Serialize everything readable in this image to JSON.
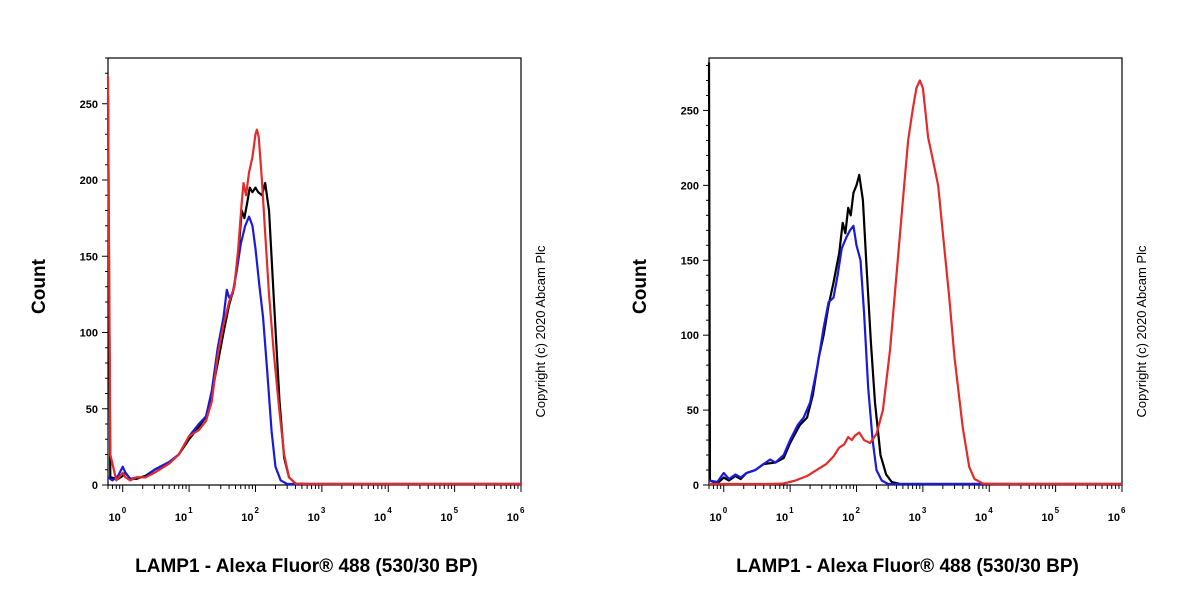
{
  "chart_data": [
    {
      "type": "line",
      "xlabel": "LAMP1 - Alexa Fluor® 488 (530/30 BP)",
      "ylabel": "Count",
      "xscale": "log",
      "xlim": [
        0.6,
        1000000
      ],
      "ylim": [
        0,
        280
      ],
      "x_ticks": [
        {
          "value": 1,
          "base": "10",
          "exp": "0"
        },
        {
          "value": 10,
          "base": "10",
          "exp": "1"
        },
        {
          "value": 100,
          "base": "10",
          "exp": "2"
        },
        {
          "value": 1000,
          "base": "10",
          "exp": "3"
        },
        {
          "value": 10000,
          "base": "10",
          "exp": "4"
        },
        {
          "value": 100000,
          "base": "10",
          "exp": "5"
        },
        {
          "value": 1000000,
          "base": "10",
          "exp": "6"
        }
      ],
      "y_ticks": [
        0,
        50,
        100,
        150,
        200,
        250
      ],
      "grid": false,
      "copyright": "Copyright (c) 2020 Abcam Plc",
      "series": [
        {
          "color": "#000000",
          "points": [
            [
              0.6,
              255
            ],
            [
              0.65,
              5
            ],
            [
              0.85,
              4
            ],
            [
              1.0,
              6
            ],
            [
              1.1,
              8
            ],
            [
              1.3,
              4
            ],
            [
              1.6,
              4
            ],
            [
              2.2,
              6
            ],
            [
              3,
              10
            ],
            [
              5,
              15
            ],
            [
              7,
              20
            ],
            [
              10,
              30
            ],
            [
              14,
              38
            ],
            [
              18,
              45
            ],
            [
              22,
              60
            ],
            [
              27,
              80
            ],
            [
              33,
              100
            ],
            [
              40,
              118
            ],
            [
              48,
              130
            ],
            [
              56,
              155
            ],
            [
              62,
              180
            ],
            [
              68,
              175
            ],
            [
              75,
              185
            ],
            [
              82,
              195
            ],
            [
              90,
              192
            ],
            [
              100,
              195
            ],
            [
              110,
              192
            ],
            [
              125,
              190
            ],
            [
              140,
              198
            ],
            [
              160,
              180
            ],
            [
              190,
              120
            ],
            [
              230,
              55
            ],
            [
              270,
              18
            ],
            [
              320,
              5
            ],
            [
              400,
              1
            ],
            [
              600,
              0
            ],
            [
              1000000,
              0
            ]
          ]
        },
        {
          "color": "#1a1adc",
          "points": [
            [
              0.6,
              5
            ],
            [
              0.7,
              3
            ],
            [
              0.85,
              6
            ],
            [
              1.0,
              12
            ],
            [
              1.1,
              8
            ],
            [
              1.3,
              4
            ],
            [
              1.6,
              5
            ],
            [
              2.2,
              5
            ],
            [
              3,
              10
            ],
            [
              5,
              15
            ],
            [
              7,
              20
            ],
            [
              10,
              32
            ],
            [
              14,
              40
            ],
            [
              18,
              45
            ],
            [
              22,
              62
            ],
            [
              27,
              90
            ],
            [
              33,
              110
            ],
            [
              37,
              128
            ],
            [
              40,
              123
            ],
            [
              45,
              125
            ],
            [
              52,
              140
            ],
            [
              60,
              158
            ],
            [
              70,
              170
            ],
            [
              80,
              176
            ],
            [
              90,
              170
            ],
            [
              100,
              155
            ],
            [
              115,
              130
            ],
            [
              130,
              110
            ],
            [
              150,
              75
            ],
            [
              175,
              35
            ],
            [
              200,
              12
            ],
            [
              240,
              3
            ],
            [
              300,
              0
            ],
            [
              1000000,
              0
            ]
          ]
        },
        {
          "color": "#e32b2b",
          "points": [
            [
              0.6,
              268
            ],
            [
              0.65,
              20
            ],
            [
              0.8,
              3
            ],
            [
              1.0,
              8
            ],
            [
              1.1,
              5
            ],
            [
              1.3,
              3
            ],
            [
              1.6,
              5
            ],
            [
              2.2,
              5
            ],
            [
              3,
              8
            ],
            [
              5,
              14
            ],
            [
              7,
              20
            ],
            [
              10,
              32
            ],
            [
              14,
              36
            ],
            [
              18,
              42
            ],
            [
              22,
              55
            ],
            [
              27,
              85
            ],
            [
              33,
              105
            ],
            [
              40,
              120
            ],
            [
              48,
              130
            ],
            [
              55,
              155
            ],
            [
              62,
              185
            ],
            [
              66,
              198
            ],
            [
              72,
              190
            ],
            [
              80,
              205
            ],
            [
              90,
              215
            ],
            [
              100,
              230
            ],
            [
              105,
              233
            ],
            [
              112,
              228
            ],
            [
              125,
              200
            ],
            [
              140,
              165
            ],
            [
              160,
              125
            ],
            [
              190,
              85
            ],
            [
              230,
              48
            ],
            [
              270,
              20
            ],
            [
              320,
              5
            ],
            [
              400,
              1
            ],
            [
              600,
              0
            ],
            [
              1000000,
              0
            ]
          ]
        }
      ]
    },
    {
      "type": "line",
      "xlabel": "LAMP1 - Alexa Fluor® 488 (530/30 BP)",
      "ylabel": "Count",
      "xscale": "log",
      "xlim": [
        0.6,
        1000000
      ],
      "ylim": [
        0,
        285
      ],
      "x_ticks": [
        {
          "value": 1,
          "base": "10",
          "exp": "0"
        },
        {
          "value": 10,
          "base": "10",
          "exp": "1"
        },
        {
          "value": 100,
          "base": "10",
          "exp": "2"
        },
        {
          "value": 1000,
          "base": "10",
          "exp": "3"
        },
        {
          "value": 10000,
          "base": "10",
          "exp": "4"
        },
        {
          "value": 100000,
          "base": "10",
          "exp": "5"
        },
        {
          "value": 1000000,
          "base": "10",
          "exp": "6"
        }
      ],
      "y_ticks": [
        0,
        50,
        100,
        150,
        200,
        250
      ],
      "grid": false,
      "copyright": "Copyright (c) 2020 Abcam Plc",
      "series": [
        {
          "color": "#000000",
          "points": [
            [
              0.6,
              282
            ],
            [
              0.62,
              3
            ],
            [
              0.8,
              1
            ],
            [
              1.0,
              5
            ],
            [
              1.2,
              3
            ],
            [
              1.5,
              6
            ],
            [
              1.8,
              4
            ],
            [
              2.2,
              8
            ],
            [
              3,
              10
            ],
            [
              4,
              14
            ],
            [
              6,
              15
            ],
            [
              8,
              18
            ],
            [
              10,
              28
            ],
            [
              14,
              40
            ],
            [
              18,
              45
            ],
            [
              22,
              60
            ],
            [
              27,
              85
            ],
            [
              32,
              100
            ],
            [
              38,
              120
            ],
            [
              45,
              135
            ],
            [
              55,
              155
            ],
            [
              62,
              175
            ],
            [
              68,
              168
            ],
            [
              75,
              185
            ],
            [
              82,
              180
            ],
            [
              90,
              195
            ],
            [
              100,
              200
            ],
            [
              110,
              207
            ],
            [
              125,
              190
            ],
            [
              140,
              150
            ],
            [
              165,
              95
            ],
            [
              190,
              55
            ],
            [
              230,
              20
            ],
            [
              280,
              7
            ],
            [
              340,
              2
            ],
            [
              450,
              0
            ],
            [
              1000000,
              0
            ]
          ]
        },
        {
          "color": "#1a1adc",
          "points": [
            [
              0.6,
              3
            ],
            [
              0.8,
              2
            ],
            [
              1.0,
              8
            ],
            [
              1.2,
              4
            ],
            [
              1.5,
              7
            ],
            [
              1.8,
              5
            ],
            [
              2.2,
              8
            ],
            [
              3,
              10
            ],
            [
              4,
              14
            ],
            [
              5,
              17
            ],
            [
              6,
              15
            ],
            [
              8,
              20
            ],
            [
              10,
              30
            ],
            [
              13,
              40
            ],
            [
              16,
              45
            ],
            [
              20,
              55
            ],
            [
              26,
              80
            ],
            [
              32,
              105
            ],
            [
              38,
              122
            ],
            [
              45,
              125
            ],
            [
              52,
              140
            ],
            [
              60,
              158
            ],
            [
              70,
              165
            ],
            [
              80,
              170
            ],
            [
              90,
              173
            ],
            [
              100,
              160
            ],
            [
              115,
              150
            ],
            [
              130,
              115
            ],
            [
              150,
              65
            ],
            [
              175,
              30
            ],
            [
              200,
              10
            ],
            [
              240,
              3
            ],
            [
              300,
              0
            ],
            [
              1000000,
              0
            ]
          ]
        },
        {
          "color": "#e32b2b",
          "points": [
            [
              0.6,
              0
            ],
            [
              5,
              0
            ],
            [
              8,
              1
            ],
            [
              12,
              3
            ],
            [
              18,
              6
            ],
            [
              25,
              10
            ],
            [
              35,
              14
            ],
            [
              45,
              19
            ],
            [
              55,
              25
            ],
            [
              65,
              27
            ],
            [
              75,
              32
            ],
            [
              85,
              30
            ],
            [
              95,
              33
            ],
            [
              110,
              35
            ],
            [
              130,
              30
            ],
            [
              160,
              28
            ],
            [
              200,
              34
            ],
            [
              250,
              50
            ],
            [
              320,
              90
            ],
            [
              400,
              140
            ],
            [
              500,
              190
            ],
            [
              600,
              230
            ],
            [
              700,
              250
            ],
            [
              800,
              265
            ],
            [
              900,
              270
            ],
            [
              1000,
              265
            ],
            [
              1100,
              248
            ],
            [
              1200,
              232
            ],
            [
              1400,
              218
            ],
            [
              1700,
              200
            ],
            [
              2000,
              168
            ],
            [
              2500,
              125
            ],
            [
              3000,
              85
            ],
            [
              4000,
              38
            ],
            [
              5000,
              12
            ],
            [
              6000,
              4
            ],
            [
              8000,
              1
            ],
            [
              12000,
              0
            ],
            [
              1000000,
              0
            ]
          ]
        }
      ]
    }
  ]
}
